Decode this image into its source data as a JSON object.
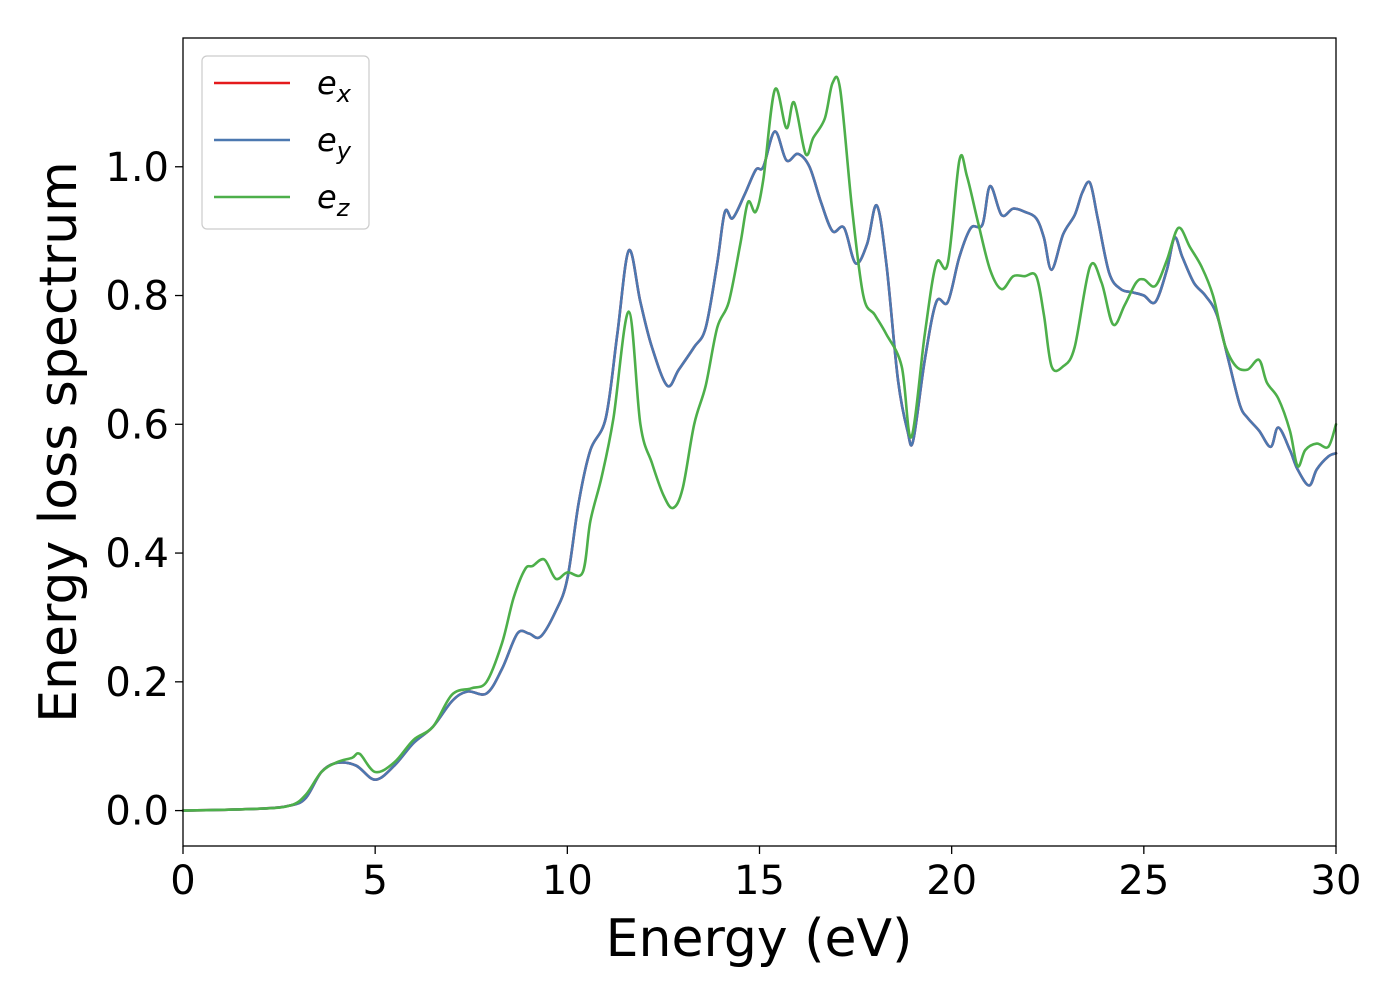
{
  "chart_data": {
    "type": "line",
    "title": "",
    "xlabel": "Energy (eV)",
    "ylabel": "Energy loss spectrum",
    "xlim": [
      0,
      30
    ],
    "ylim": [
      -0.055,
      1.2
    ],
    "xticks": [
      0,
      5,
      10,
      15,
      20,
      25,
      30
    ],
    "xtick_labels": [
      "0",
      "5",
      "10",
      "15",
      "20",
      "25",
      "30"
    ],
    "yticks": [
      0.0,
      0.2,
      0.4,
      0.6,
      0.8,
      1.0
    ],
    "ytick_labels": [
      "0.0",
      "0.2",
      "0.4",
      "0.6",
      "0.8",
      "1.0"
    ],
    "grid": false,
    "legend_position": "top-left",
    "series": [
      {
        "name": "e_x",
        "label_base": "e",
        "label_sub": "x",
        "color": "#e41a1c",
        "x": [
          0,
          2,
          2.8,
          3.2,
          3.6,
          4.0,
          4.5,
          5.0,
          5.5,
          6.0,
          6.5,
          7.0,
          7.4,
          7.9,
          8.3,
          8.7,
          9.0,
          9.3,
          9.7,
          10.0,
          10.3,
          10.6,
          11.0,
          11.3,
          11.6,
          11.9,
          12.2,
          12.6,
          12.9,
          13.3,
          13.6,
          13.9,
          14.1,
          14.3,
          14.6,
          14.9,
          15.1,
          15.4,
          15.7,
          16.0,
          16.3,
          16.6,
          16.9,
          17.2,
          17.5,
          17.8,
          18.05,
          18.3,
          18.6,
          18.85,
          19.0,
          19.3,
          19.6,
          19.9,
          20.2,
          20.5,
          20.8,
          21.0,
          21.3,
          21.6,
          21.9,
          22.2,
          22.4,
          22.6,
          22.9,
          23.2,
          23.4,
          23.6,
          23.8,
          24.1,
          24.4,
          24.7,
          25.0,
          25.3,
          25.6,
          25.8,
          26.0,
          26.3,
          26.6,
          26.9,
          27.2,
          27.5,
          27.7,
          28.0,
          28.3,
          28.5,
          28.8,
          29.0,
          29.3,
          29.5,
          29.8,
          30.0
        ],
        "y": [
          0.0,
          0.003,
          0.008,
          0.02,
          0.06,
          0.074,
          0.07,
          0.048,
          0.07,
          0.105,
          0.13,
          0.17,
          0.185,
          0.182,
          0.22,
          0.275,
          0.275,
          0.27,
          0.31,
          0.36,
          0.48,
          0.56,
          0.61,
          0.74,
          0.87,
          0.79,
          0.72,
          0.66,
          0.685,
          0.72,
          0.75,
          0.85,
          0.93,
          0.92,
          0.955,
          0.995,
          1.0,
          1.055,
          1.01,
          1.02,
          1.0,
          0.945,
          0.9,
          0.905,
          0.85,
          0.88,
          0.94,
          0.85,
          0.67,
          0.59,
          0.575,
          0.7,
          0.79,
          0.79,
          0.86,
          0.905,
          0.91,
          0.97,
          0.925,
          0.935,
          0.93,
          0.92,
          0.89,
          0.84,
          0.895,
          0.925,
          0.96,
          0.975,
          0.92,
          0.835,
          0.81,
          0.805,
          0.8,
          0.79,
          0.84,
          0.89,
          0.86,
          0.82,
          0.8,
          0.77,
          0.7,
          0.63,
          0.61,
          0.59,
          0.565,
          0.595,
          0.56,
          0.53,
          0.505,
          0.53,
          0.55,
          0.555
        ]
      },
      {
        "name": "e_y",
        "label_base": "e",
        "label_sub": "y",
        "color": "#4c78b0",
        "x": [
          0,
          2,
          2.8,
          3.2,
          3.6,
          4.0,
          4.5,
          5.0,
          5.5,
          6.0,
          6.5,
          7.0,
          7.4,
          7.9,
          8.3,
          8.7,
          9.0,
          9.3,
          9.7,
          10.0,
          10.3,
          10.6,
          11.0,
          11.3,
          11.6,
          11.9,
          12.2,
          12.6,
          12.9,
          13.3,
          13.6,
          13.9,
          14.1,
          14.3,
          14.6,
          14.9,
          15.1,
          15.4,
          15.7,
          16.0,
          16.3,
          16.6,
          16.9,
          17.2,
          17.5,
          17.8,
          18.05,
          18.3,
          18.6,
          18.85,
          19.0,
          19.3,
          19.6,
          19.9,
          20.2,
          20.5,
          20.8,
          21.0,
          21.3,
          21.6,
          21.9,
          22.2,
          22.4,
          22.6,
          22.9,
          23.2,
          23.4,
          23.6,
          23.8,
          24.1,
          24.4,
          24.7,
          25.0,
          25.3,
          25.6,
          25.8,
          26.0,
          26.3,
          26.6,
          26.9,
          27.2,
          27.5,
          27.7,
          28.0,
          28.3,
          28.5,
          28.8,
          29.0,
          29.3,
          29.5,
          29.8,
          30.0
        ],
        "y": [
          0.0,
          0.003,
          0.008,
          0.02,
          0.06,
          0.074,
          0.07,
          0.048,
          0.07,
          0.105,
          0.13,
          0.17,
          0.185,
          0.182,
          0.22,
          0.275,
          0.275,
          0.27,
          0.31,
          0.36,
          0.48,
          0.56,
          0.61,
          0.74,
          0.87,
          0.79,
          0.72,
          0.66,
          0.685,
          0.72,
          0.75,
          0.85,
          0.93,
          0.92,
          0.955,
          0.995,
          1.0,
          1.055,
          1.01,
          1.02,
          1.0,
          0.945,
          0.9,
          0.905,
          0.85,
          0.88,
          0.94,
          0.85,
          0.67,
          0.59,
          0.575,
          0.7,
          0.79,
          0.79,
          0.86,
          0.905,
          0.91,
          0.97,
          0.925,
          0.935,
          0.93,
          0.92,
          0.89,
          0.84,
          0.895,
          0.925,
          0.96,
          0.975,
          0.92,
          0.835,
          0.81,
          0.805,
          0.8,
          0.79,
          0.84,
          0.89,
          0.86,
          0.82,
          0.8,
          0.77,
          0.7,
          0.63,
          0.61,
          0.59,
          0.565,
          0.595,
          0.56,
          0.53,
          0.505,
          0.53,
          0.55,
          0.555
        ]
      },
      {
        "name": "e_z",
        "label_base": "e",
        "label_sub": "z",
        "color": "#4daf4a",
        "x": [
          0,
          2,
          2.8,
          3.2,
          3.6,
          4.0,
          4.4,
          4.6,
          5.0,
          5.5,
          6.0,
          6.5,
          7.0,
          7.5,
          7.9,
          8.3,
          8.6,
          8.9,
          9.1,
          9.4,
          9.7,
          10.0,
          10.4,
          10.6,
          10.9,
          11.2,
          11.6,
          11.9,
          12.2,
          12.5,
          12.75,
          13.0,
          13.3,
          13.6,
          13.9,
          14.2,
          14.5,
          14.7,
          14.9,
          15.1,
          15.4,
          15.7,
          15.9,
          16.2,
          16.4,
          16.7,
          16.9,
          17.1,
          17.4,
          17.7,
          18.0,
          18.3,
          18.7,
          18.95,
          19.3,
          19.6,
          19.9,
          20.2,
          20.4,
          20.7,
          21.0,
          21.3,
          21.6,
          21.9,
          22.2,
          22.4,
          22.6,
          22.9,
          23.2,
          23.6,
          23.9,
          24.2,
          24.5,
          24.8,
          25.0,
          25.3,
          25.6,
          25.9,
          26.2,
          26.5,
          26.8,
          27.1,
          27.4,
          27.7,
          28.0,
          28.2,
          28.5,
          28.8,
          29.0,
          29.2,
          29.5,
          29.8,
          30.0
        ],
        "y": [
          0.0,
          0.003,
          0.008,
          0.025,
          0.06,
          0.075,
          0.082,
          0.088,
          0.06,
          0.075,
          0.11,
          0.13,
          0.18,
          0.19,
          0.2,
          0.26,
          0.33,
          0.375,
          0.38,
          0.39,
          0.36,
          0.37,
          0.37,
          0.45,
          0.52,
          0.61,
          0.775,
          0.6,
          0.54,
          0.49,
          0.47,
          0.5,
          0.6,
          0.66,
          0.75,
          0.79,
          0.88,
          0.945,
          0.93,
          0.98,
          1.12,
          1.06,
          1.1,
          1.02,
          1.045,
          1.075,
          1.13,
          1.12,
          0.94,
          0.8,
          0.77,
          0.74,
          0.69,
          0.58,
          0.74,
          0.85,
          0.85,
          1.01,
          0.985,
          0.91,
          0.84,
          0.81,
          0.83,
          0.83,
          0.83,
          0.77,
          0.69,
          0.69,
          0.72,
          0.845,
          0.82,
          0.755,
          0.785,
          0.82,
          0.825,
          0.815,
          0.855,
          0.905,
          0.875,
          0.845,
          0.8,
          0.725,
          0.69,
          0.685,
          0.7,
          0.665,
          0.64,
          0.59,
          0.535,
          0.56,
          0.57,
          0.565,
          0.6
        ]
      }
    ]
  }
}
